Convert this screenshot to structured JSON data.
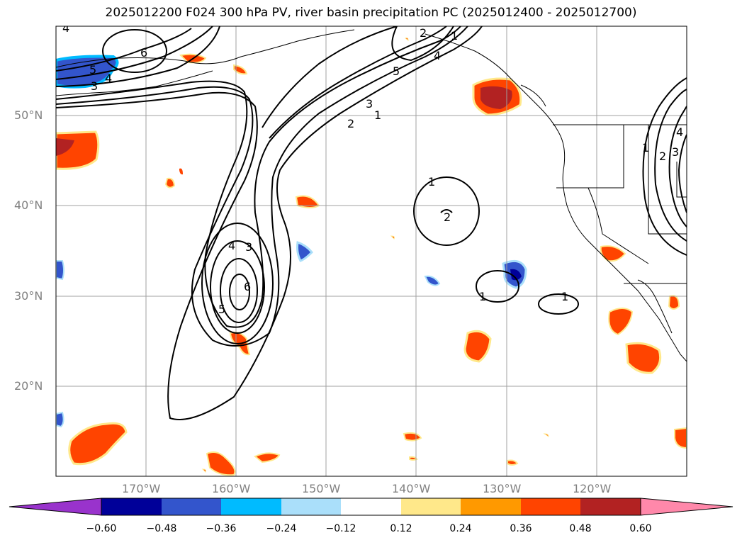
{
  "title": "2025012200 F024 300 hPa PV, river basin precipitation PC (2025012400 - 2025012700)",
  "map": {
    "lon_labels": [
      "170°W",
      "160°W",
      "150°W",
      "140°W",
      "130°W",
      "120°W"
    ],
    "lat_labels": [
      "50°N",
      "40°N",
      "30°N",
      "20°N"
    ],
    "gridline_color": "#a0a0a0",
    "contour_labels": [
      "4",
      "6",
      "5",
      "4",
      "3",
      "2",
      "1",
      "5",
      "4",
      "3",
      "2",
      "1",
      "1",
      "2",
      "4",
      "3",
      "6",
      "5",
      "1",
      "1",
      "1",
      "2",
      "3",
      "4"
    ]
  },
  "colorbar": {
    "ticks": [
      "−0.60",
      "−0.48",
      "−0.36",
      "−0.24",
      "−0.12",
      "0.12",
      "0.24",
      "0.36",
      "0.48",
      "0.60"
    ],
    "colors": [
      "#9933cc",
      "#000099",
      "#3355cc",
      "#00bbff",
      "#aadffa",
      "#ffffff",
      "#ffe88a",
      "#ff9900",
      "#ff4400",
      "#b22222",
      "#ff88aa"
    ]
  }
}
